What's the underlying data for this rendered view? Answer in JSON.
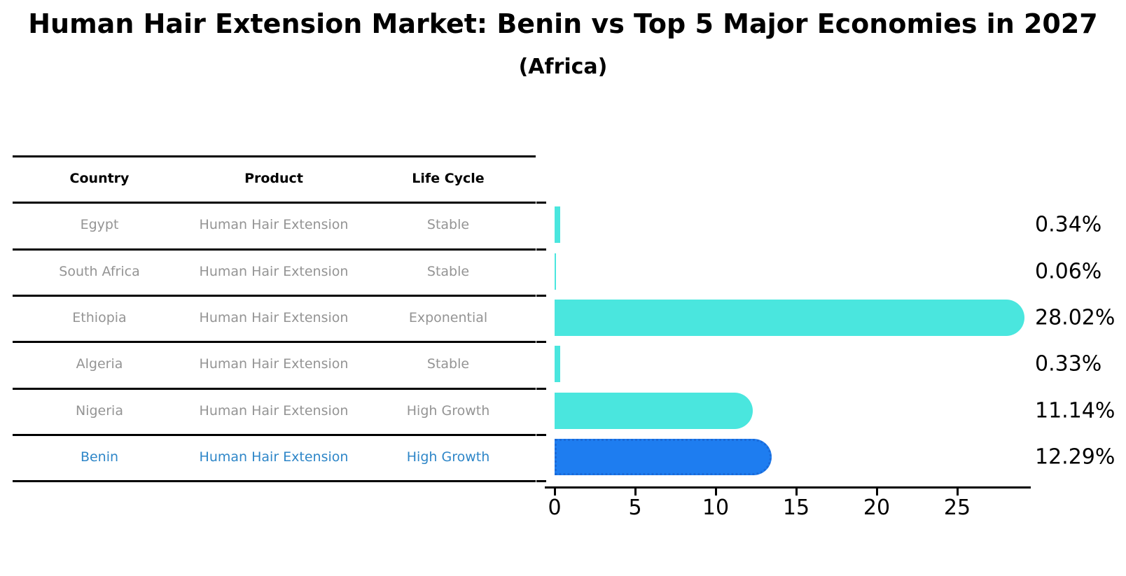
{
  "title": "Human Hair Extension Market: Benin vs Top 5 Major Economies in 2027",
  "subtitle": "(Africa)",
  "table": {
    "headers": [
      "Country",
      "Product",
      "Life Cycle"
    ],
    "rows": [
      {
        "country": "Egypt",
        "product": "Human Hair Extension",
        "life_cycle": "Stable",
        "highlight": false
      },
      {
        "country": "South Africa",
        "product": "Human Hair Extension",
        "life_cycle": "Stable",
        "highlight": false
      },
      {
        "country": "Ethiopia",
        "product": "Human Hair Extension",
        "life_cycle": "Exponential",
        "highlight": false
      },
      {
        "country": "Algeria",
        "product": "Human Hair Extension",
        "life_cycle": "Stable",
        "highlight": false
      },
      {
        "country": "Nigeria",
        "product": "Human Hair Extension",
        "life_cycle": "High Growth",
        "highlight": false
      },
      {
        "country": "Benin",
        "product": "Human Hair Extension",
        "life_cycle": "High Growth",
        "highlight": true
      }
    ]
  },
  "chart_data": {
    "type": "bar",
    "orientation": "horizontal",
    "title": "Human Hair Extension Market: Benin vs Top 5 Major Economies in 2027 (Africa)",
    "categories": [
      "Egypt",
      "South Africa",
      "Ethiopia",
      "Algeria",
      "Nigeria",
      "Benin"
    ],
    "values": [
      0.34,
      0.06,
      28.02,
      0.33,
      11.14,
      12.29
    ],
    "value_labels": [
      "0.34%",
      "0.06%",
      "28.02%",
      "0.33%",
      "11.14%",
      "12.29%"
    ],
    "x_ticks": [
      0,
      5,
      10,
      15,
      20,
      25
    ],
    "xlim": [
      0,
      29.5
    ],
    "xlabel": "",
    "ylabel": "",
    "grid": false,
    "legend": null,
    "highlight_index": 5,
    "colors": {
      "bar": "#4AE6DE",
      "highlight_bar": "#1E7DF0",
      "highlight_bar_border": "#1a6ad8",
      "axis": "#000000",
      "value_label": "#000000",
      "table_body_text": "#949494",
      "table_header_text": "#000000",
      "highlight_text": "#2e86c8"
    }
  }
}
